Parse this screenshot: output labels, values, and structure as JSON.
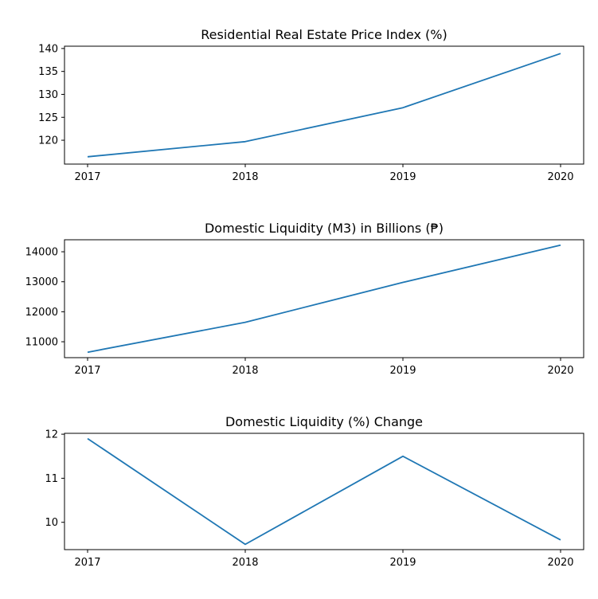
{
  "colors": {
    "background": "#ffffff",
    "line": "#1f77b4",
    "axis": "#000000"
  },
  "chart_data": [
    {
      "type": "line",
      "title": "Residential Real Estate Price Index (%)",
      "xlabel": "",
      "ylabel": "",
      "x": [
        "2017",
        "2018",
        "2019",
        "2020"
      ],
      "series": [
        {
          "values": [
            116.4,
            119.7,
            127.1,
            138.9
          ]
        }
      ],
      "ylim": [
        114.8,
        140.5
      ],
      "yticks": [
        120,
        125,
        130,
        135,
        140
      ],
      "grid": false
    },
    {
      "type": "line",
      "title": "Domestic Liquidity (M3) in Billions (₱)",
      "xlabel": "",
      "ylabel": "",
      "x": [
        "2017",
        "2018",
        "2019",
        "2020"
      ],
      "series": [
        {
          "values": [
            10650,
            11650,
            12980,
            14220
          ]
        }
      ],
      "ylim": [
        10470,
        14400
      ],
      "yticks": [
        11000,
        12000,
        13000,
        14000
      ],
      "grid": false
    },
    {
      "type": "line",
      "title": "Domestic Liquidity (%) Change",
      "xlabel": "",
      "ylabel": "",
      "x": [
        "2017",
        "2018",
        "2019",
        "2020"
      ],
      "series": [
        {
          "values": [
            11.9,
            9.5,
            11.5,
            9.6
          ]
        }
      ],
      "ylim": [
        9.38,
        12.02
      ],
      "yticks": [
        10,
        11,
        12
      ],
      "grid": false
    }
  ]
}
